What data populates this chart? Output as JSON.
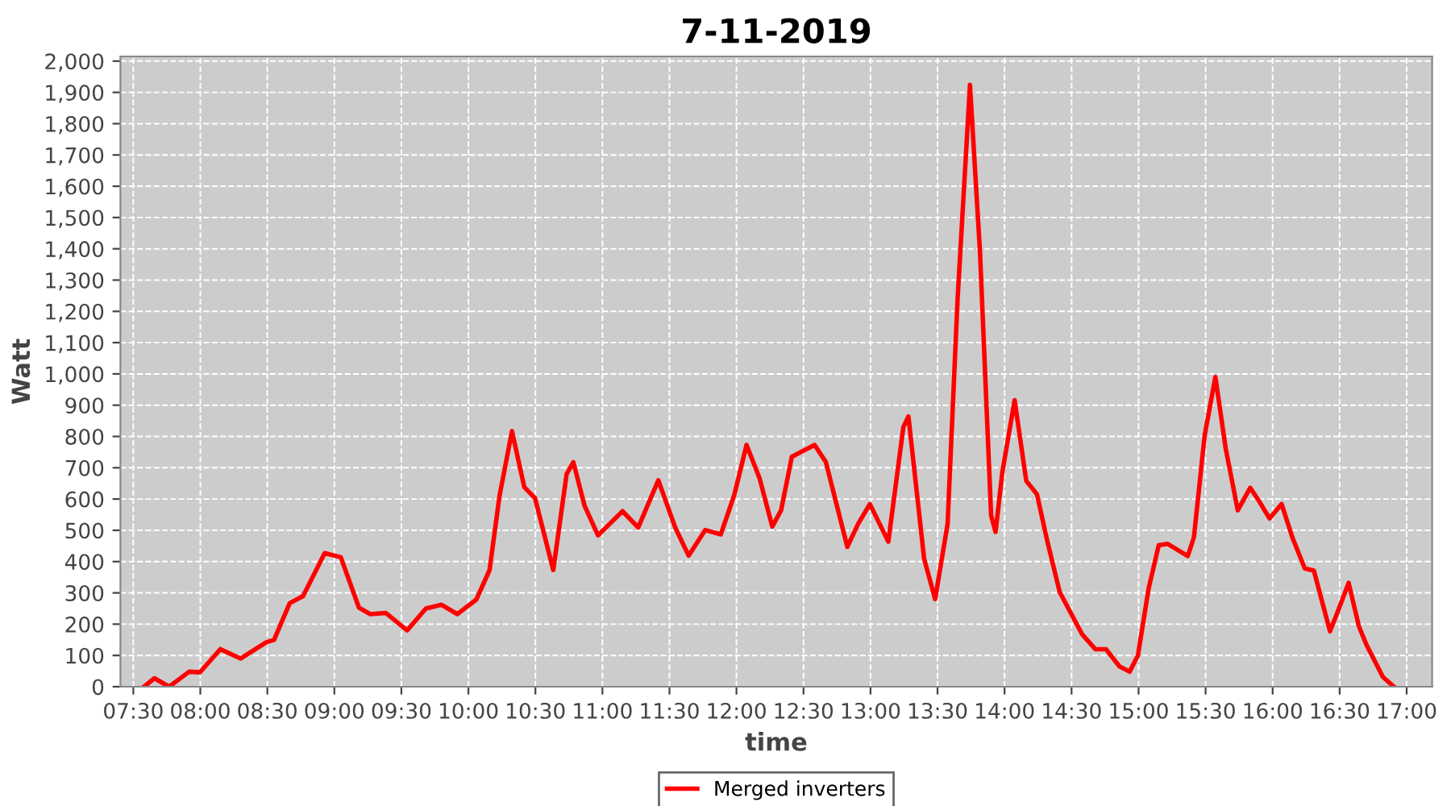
{
  "chart_data": {
    "type": "line",
    "title": "7-11-2019",
    "xlabel": "time",
    "ylabel": "Watt",
    "x": [
      7.58,
      7.658,
      7.767,
      7.917,
      7.997,
      8.15,
      8.3,
      8.492,
      8.55,
      8.667,
      8.767,
      8.928,
      9.048,
      9.183,
      9.267,
      9.383,
      9.543,
      9.683,
      9.8,
      9.917,
      10.06,
      10.158,
      10.233,
      10.325,
      10.417,
      10.497,
      10.633,
      10.733,
      10.783,
      10.867,
      10.967,
      11.15,
      11.267,
      11.417,
      11.543,
      11.643,
      11.767,
      11.883,
      11.983,
      12.075,
      12.172,
      12.267,
      12.333,
      12.413,
      12.493,
      12.583,
      12.667,
      12.827,
      12.907,
      12.995,
      13.133,
      13.245,
      13.283,
      13.4,
      13.482,
      13.575,
      13.65,
      13.742,
      13.817,
      13.9,
      13.933,
      13.983,
      14.075,
      14.162,
      14.242,
      14.317,
      14.412,
      14.578,
      14.677,
      14.757,
      14.857,
      14.933,
      14.995,
      15.075,
      15.15,
      15.215,
      15.367,
      15.413,
      15.493,
      15.573,
      15.65,
      15.74,
      15.833,
      15.892,
      15.977,
      16.067,
      16.15,
      16.24,
      16.308,
      16.428,
      16.483,
      16.567,
      16.643,
      16.7,
      16.823,
      16.9
    ],
    "series": [
      {
        "name": "Merged inverters",
        "color": "#ff0000",
        "values": [
          0,
          27,
          0,
          48,
          46,
          120,
          90,
          142,
          150,
          267,
          290,
          427,
          414,
          253,
          232,
          236,
          180,
          250,
          262,
          232,
          279,
          373,
          612,
          817,
          638,
          603,
          373,
          680,
          718,
          578,
          484,
          561,
          509,
          660,
          509,
          419,
          501,
          487,
          612,
          773,
          667,
          512,
          564,
          735,
          753,
          773,
          718,
          447,
          520,
          584,
          464,
          830,
          864,
          409,
          280,
          520,
          1242,
          1924,
          1388,
          546,
          495,
          684,
          916,
          658,
          615,
          469,
          302,
          168,
          120,
          120,
          65,
          48,
          100,
          314,
          452,
          457,
          418,
          478,
          804,
          990,
          761,
          564,
          636,
          598,
          538,
          584,
          474,
          378,
          371,
          177,
          237,
          332,
          194,
          134,
          31,
          2
        ]
      }
    ],
    "xlim": [
      7.404,
      17.19
    ],
    "xticks": [
      {
        "value": 7.5,
        "label": "07:30"
      },
      {
        "value": 8,
        "label": "08:00"
      },
      {
        "value": 8.5,
        "label": "08:30"
      },
      {
        "value": 9,
        "label": "09:00"
      },
      {
        "value": 9.5,
        "label": "09:30"
      },
      {
        "value": 10,
        "label": "10:00"
      },
      {
        "value": 10.5,
        "label": "10:30"
      },
      {
        "value": 11,
        "label": "11:00"
      },
      {
        "value": 11.5,
        "label": "11:30"
      },
      {
        "value": 12,
        "label": "12:00"
      },
      {
        "value": 12.5,
        "label": "12:30"
      },
      {
        "value": 13,
        "label": "13:00"
      },
      {
        "value": 13.5,
        "label": "13:30"
      },
      {
        "value": 14,
        "label": "14:00"
      },
      {
        "value": 14.5,
        "label": "14:30"
      },
      {
        "value": 15,
        "label": "15:00"
      },
      {
        "value": 15.5,
        "label": "15:30"
      },
      {
        "value": 16,
        "label": "16:00"
      },
      {
        "value": 16.5,
        "label": "16:30"
      },
      {
        "value": 17,
        "label": "17:00"
      }
    ],
    "ylim": [
      0,
      2015
    ],
    "yticks": [
      0,
      100,
      200,
      300,
      400,
      500,
      600,
      700,
      800,
      900,
      {
        "value": 1000,
        "label": "1,000"
      },
      {
        "value": 1100,
        "label": "1,100"
      },
      {
        "value": 1200,
        "label": "1,200"
      },
      {
        "value": 1300,
        "label": "1,300"
      },
      {
        "value": 1400,
        "label": "1,400"
      },
      {
        "value": 1500,
        "label": "1,500"
      },
      {
        "value": 1600,
        "label": "1,600"
      },
      {
        "value": 1700,
        "label": "1,700"
      },
      {
        "value": 1800,
        "label": "1,800"
      },
      {
        "value": 1900,
        "label": "1,900"
      },
      {
        "value": 2000,
        "label": "2,000"
      }
    ],
    "grid": true,
    "legend": "bottom",
    "marker": "none",
    "line_style": "solid"
  }
}
